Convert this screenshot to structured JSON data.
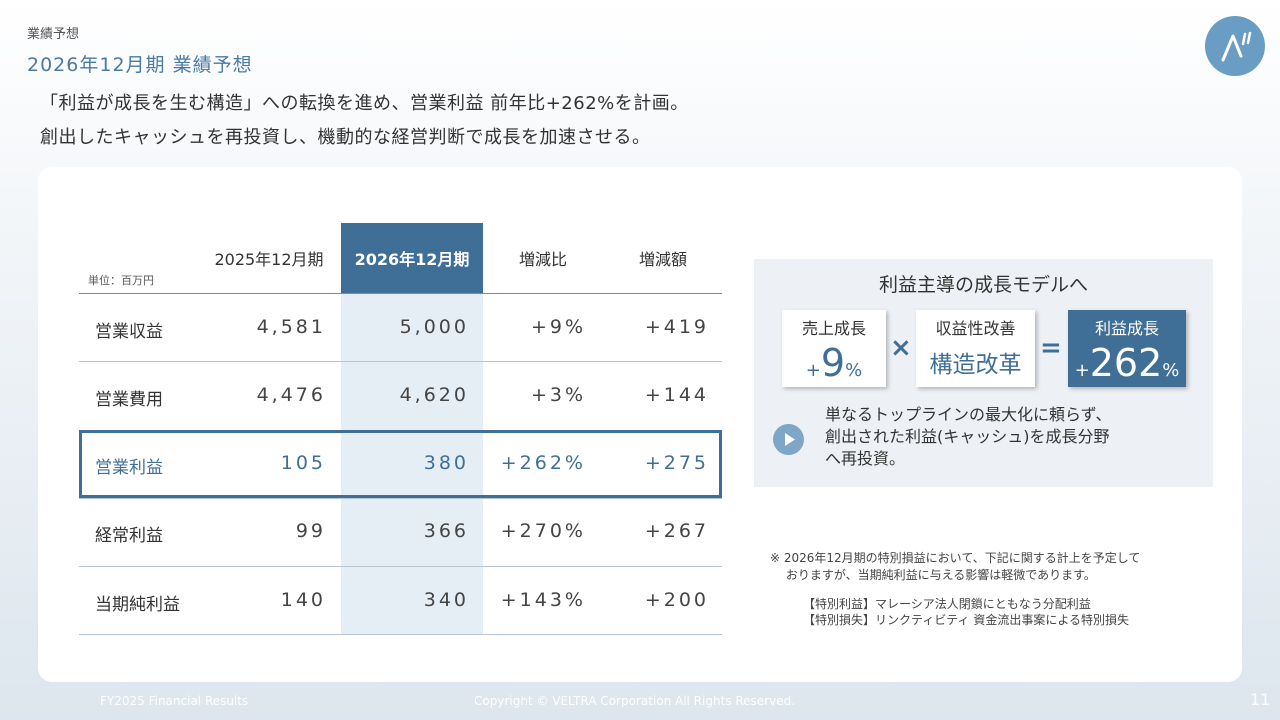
{
  "header": {
    "breadcrumb": "業績予想",
    "title": "2026年12月期 業績予想",
    "lead_line1": "「利益が成長を生む構造」への転換を進め、営業利益 前年比+262%を計画。",
    "lead_line2": "創出したキャッシュを再投資し、機動的な経営判断で成長を加速させる。"
  },
  "table": {
    "unit": "単位：百万円",
    "columns": [
      "2025年12月期",
      "2026年12月期",
      "増減比",
      "増減額"
    ],
    "rows": [
      {
        "label": "営業収益",
        "v2025": "4,581",
        "v2026": "5,000",
        "ratio": "+9%",
        "diff": "+419"
      },
      {
        "label": "営業費用",
        "v2025": "4,476",
        "v2026": "4,620",
        "ratio": "+3%",
        "diff": "+144"
      },
      {
        "label": "営業利益",
        "v2025": "105",
        "v2026": "380",
        "ratio": "+262%",
        "diff": "+275"
      },
      {
        "label": "経常利益",
        "v2025": "99",
        "v2026": "366",
        "ratio": "+270%",
        "diff": "+267"
      },
      {
        "label": "当期純利益",
        "v2025": "140",
        "v2026": "340",
        "ratio": "+143%",
        "diff": "+200"
      }
    ]
  },
  "model": {
    "title": "利益主導の成長モデルへ",
    "sales_label": "売上成長",
    "sales_plus": "+",
    "sales_value": "9",
    "sales_unit": "%",
    "multiply": "×",
    "struct_label": "収益性改善",
    "struct_value": "構造改革",
    "equals": "=",
    "profit_label": "利益成長",
    "profit_plus": "+",
    "profit_value": "262",
    "profit_unit": "%",
    "desc_line1": "単なるトップラインの最大化に頼らず、",
    "desc_line2": "創出された利益(キャッシュ)を成長分野",
    "desc_line3": "へ再投資。"
  },
  "notes": {
    "line1": "※ 2026年12月期の特別損益において、下記に関する計上を予定して",
    "line2": "　 おりますが、当期純利益に与える影響は軽微であります。",
    "gain": "【特別利益】マレーシア法人閉鎖にともなう分配利益",
    "loss": "【特別損失】リンクティビティ 資金流出事案による特別損失"
  },
  "footer": {
    "left": "FY2025 Financial Results",
    "center": "Copyright © VELTRA Corporation All Rights Reserved.",
    "page": "11"
  },
  "colors": {
    "accent": "#3f6f97",
    "highlight_col": "#e6eef5",
    "panel": "#edf1f5",
    "logo": "#6a9dc4"
  },
  "icons": [
    "logo-mark",
    "play-icon"
  ]
}
